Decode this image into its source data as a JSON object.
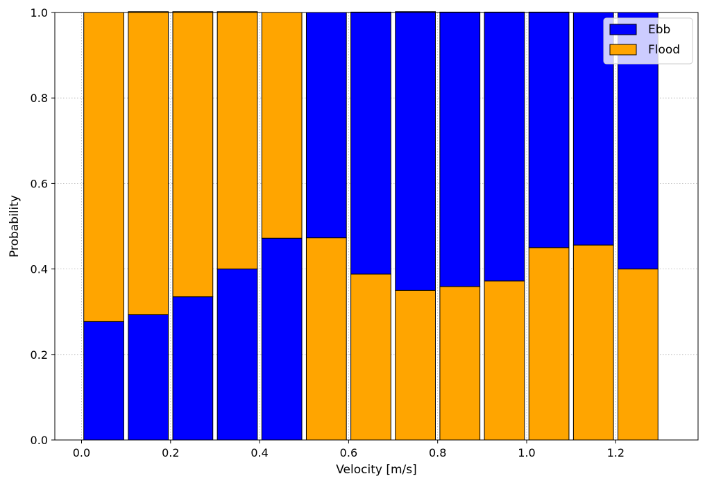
{
  "chart_data": {
    "type": "bar",
    "stacking": "stacked",
    "xlabel": "Velocity [m/s]",
    "ylabel": "Probability",
    "xlim": [
      -0.06,
      1.385
    ],
    "ylim": [
      0,
      1.0
    ],
    "x_ticks": [
      0.0,
      0.2,
      0.4,
      0.6,
      0.8,
      1.0,
      1.2
    ],
    "x_tick_labels": [
      "0.0",
      "0.2",
      "0.4",
      "0.6",
      "0.8",
      "1.0",
      "1.2"
    ],
    "y_ticks": [
      0.0,
      0.2,
      0.4,
      0.6,
      0.8,
      1.0
    ],
    "y_tick_labels": [
      "0.0",
      "0.2",
      "0.4",
      "0.6",
      "0.8",
      "1.0"
    ],
    "grid": true,
    "legend_position": "top-right",
    "bar_bins": [
      [
        0.0,
        0.1
      ],
      [
        0.1,
        0.2
      ],
      [
        0.2,
        0.3
      ],
      [
        0.3,
        0.4
      ],
      [
        0.4,
        0.5
      ],
      [
        0.5,
        0.6
      ],
      [
        0.6,
        0.7
      ],
      [
        0.7,
        0.8
      ],
      [
        0.8,
        0.9
      ],
      [
        0.9,
        1.0
      ],
      [
        1.0,
        1.1
      ],
      [
        1.1,
        1.2
      ],
      [
        1.2,
        1.3
      ]
    ],
    "series": [
      {
        "name": "Ebb",
        "color": "#0000ff",
        "values": [
          0.277,
          0.293,
          0.335,
          0.4,
          0.472,
          0.527,
          0.613,
          0.652,
          0.642,
          0.629,
          0.551,
          0.544,
          0.6
        ]
      },
      {
        "name": "Flood",
        "color": "#ffa500",
        "values": [
          0.723,
          0.709,
          0.667,
          0.602,
          0.528,
          0.473,
          0.388,
          0.35,
          0.359,
          0.372,
          0.45,
          0.456,
          0.4
        ]
      }
    ],
    "stack_order_per_bin": [
      [
        "Ebb",
        "Flood"
      ],
      [
        "Ebb",
        "Flood"
      ],
      [
        "Ebb",
        "Flood"
      ],
      [
        "Ebb",
        "Flood"
      ],
      [
        "Ebb",
        "Flood"
      ],
      [
        "Flood",
        "Ebb"
      ],
      [
        "Flood",
        "Ebb"
      ],
      [
        "Flood",
        "Ebb"
      ],
      [
        "Flood",
        "Ebb"
      ],
      [
        "Flood",
        "Ebb"
      ],
      [
        "Flood",
        "Ebb"
      ],
      [
        "Flood",
        "Ebb"
      ],
      [
        "Flood",
        "Ebb"
      ]
    ]
  }
}
